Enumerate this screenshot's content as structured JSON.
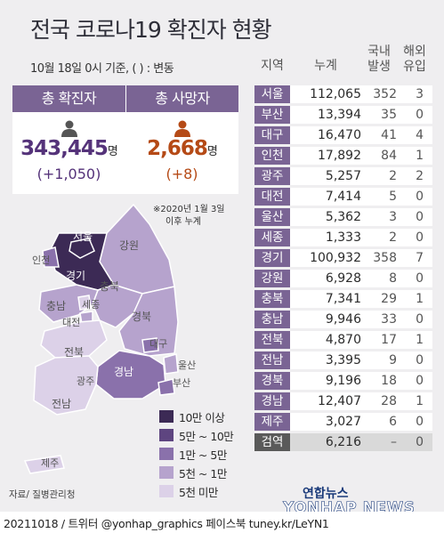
{
  "title": "전국 코로나19 확진자 현황",
  "basis": "10월 18일 0시 기준, ( ) : 변동",
  "summary": {
    "confirmed_label": "총 확진자",
    "confirmed_value": "343,445",
    "confirmed_unit": "명",
    "confirmed_delta": "(+1,050)",
    "deaths_label": "총 사망자",
    "deaths_value": "2,668",
    "deaths_unit": "명",
    "deaths_delta": "(+8)"
  },
  "map_note_line1": "※2020년 1월 3일",
  "map_note_line2": "이후 누계",
  "map_labels": [
    "서울",
    "인천",
    "경기",
    "강원",
    "충북",
    "충남",
    "세종",
    "대전",
    "경북",
    "대구",
    "전북",
    "울산",
    "경남",
    "부산",
    "광주",
    "전남",
    "제주"
  ],
  "legend": [
    {
      "label": "10만 이상",
      "color": "#3c2a55"
    },
    {
      "label": "5만 ~ 10만",
      "color": "#5e4580"
    },
    {
      "label": "1만 ~ 5만",
      "color": "#8a71ab"
    },
    {
      "label": "5천 ~ 1만",
      "color": "#b6a3cd"
    },
    {
      "label": "5천 미만",
      "color": "#dcd1e8"
    }
  ],
  "source": "자료/ 질병관리청",
  "table": {
    "headers": {
      "region": "지역",
      "total": "누계",
      "domestic_1": "국내",
      "domestic_2": "발생",
      "imported_1": "해외",
      "imported_2": "유입"
    },
    "rows": [
      {
        "region": "서울",
        "total": "112,065",
        "domestic": "352",
        "imported": "3"
      },
      {
        "region": "부산",
        "total": "13,394",
        "domestic": "35",
        "imported": "0"
      },
      {
        "region": "대구",
        "total": "16,470",
        "domestic": "41",
        "imported": "4"
      },
      {
        "region": "인천",
        "total": "17,892",
        "domestic": "84",
        "imported": "1"
      },
      {
        "region": "광주",
        "total": "5,257",
        "domestic": "2",
        "imported": "2"
      },
      {
        "region": "대전",
        "total": "7,414",
        "domestic": "5",
        "imported": "0"
      },
      {
        "region": "울산",
        "total": "5,362",
        "domestic": "3",
        "imported": "0"
      },
      {
        "region": "세종",
        "total": "1,333",
        "domestic": "2",
        "imported": "0"
      },
      {
        "region": "경기",
        "total": "100,932",
        "domestic": "358",
        "imported": "7"
      },
      {
        "region": "강원",
        "total": "6,928",
        "domestic": "8",
        "imported": "0"
      },
      {
        "region": "충북",
        "total": "7,341",
        "domestic": "29",
        "imported": "1"
      },
      {
        "region": "충남",
        "total": "9,946",
        "domestic": "33",
        "imported": "0"
      },
      {
        "region": "전북",
        "total": "4,870",
        "domestic": "17",
        "imported": "1"
      },
      {
        "region": "전남",
        "total": "3,395",
        "domestic": "9",
        "imported": "0"
      },
      {
        "region": "경북",
        "total": "9,196",
        "domestic": "18",
        "imported": "0"
      },
      {
        "region": "경남",
        "total": "12,407",
        "domestic": "28",
        "imported": "1"
      },
      {
        "region": "제주",
        "total": "3,027",
        "domestic": "6",
        "imported": "0"
      },
      {
        "region": "검역",
        "total": "6,216",
        "domestic": "–",
        "imported": "0"
      }
    ]
  },
  "logo_ko": "연합뉴스",
  "logo_en": "YONHAP NEWS",
  "footer": "20211018 / 트위터 @yonhap_graphics  페이스북 tuney.kr/LeYN1"
}
